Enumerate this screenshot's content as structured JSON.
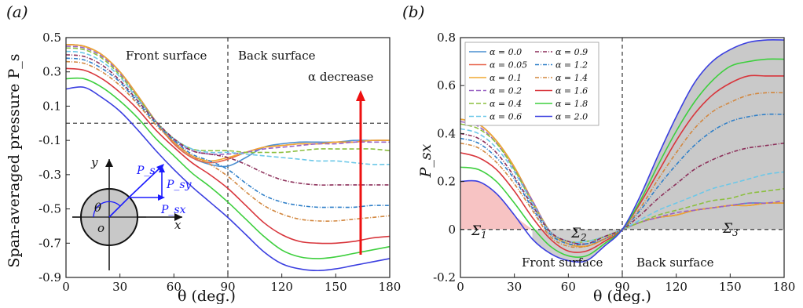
{
  "chart_data": [
    {
      "panel": "(a)",
      "type": "line",
      "xlabel": "θ (deg.)",
      "ylabel": "Span-averaged pressure P_s",
      "xlim": [
        0,
        180
      ],
      "ylim": [
        -0.9,
        0.5
      ],
      "xticks": [
        "0",
        "30",
        "60",
        "90",
        "120",
        "150",
        "180"
      ],
      "yticks": [
        "-0.9",
        "-0.7",
        "-0.5",
        "-0.3",
        "-0.1",
        "0.1",
        "0.3",
        "0.5"
      ],
      "grid": false,
      "annotations": {
        "front": "Front surface",
        "back": "Back surface",
        "trend": "α decrease"
      },
      "diagram": {
        "y": "y",
        "x": "x",
        "o": "o",
        "theta": "θ",
        "ps": "P_s",
        "psy": "P_sy",
        "psx": "P_sx"
      },
      "x": [
        0,
        10,
        20,
        30,
        40,
        50,
        60,
        70,
        80,
        90,
        100,
        110,
        120,
        130,
        140,
        150,
        160,
        170,
        180
      ],
      "series": [
        {
          "name": "α = 0.0",
          "color": "#4a8fd0",
          "dash": "",
          "values": [
            0.46,
            0.45,
            0.4,
            0.3,
            0.16,
            0.01,
            -0.12,
            -0.2,
            -0.24,
            -0.25,
            -0.2,
            -0.14,
            -0.12,
            -0.11,
            -0.11,
            -0.11,
            -0.1,
            -0.1,
            -0.1
          ]
        },
        {
          "name": "α = 0.05",
          "color": "#e8644b",
          "dash": "",
          "values": [
            0.46,
            0.45,
            0.4,
            0.3,
            0.16,
            0.01,
            -0.12,
            -0.2,
            -0.23,
            -0.21,
            -0.17,
            -0.14,
            -0.13,
            -0.12,
            -0.12,
            -0.11,
            -0.11,
            -0.1,
            -0.1
          ]
        },
        {
          "name": "α = 0.1",
          "color": "#f0a830",
          "dash": "",
          "values": [
            0.46,
            0.45,
            0.4,
            0.3,
            0.16,
            0.01,
            -0.11,
            -0.19,
            -0.22,
            -0.2,
            -0.17,
            -0.14,
            -0.13,
            -0.12,
            -0.12,
            -0.11,
            -0.11,
            -0.1,
            -0.1
          ]
        },
        {
          "name": "α = 0.2",
          "color": "#9a63c4",
          "dash": "6,3",
          "values": [
            0.45,
            0.44,
            0.39,
            0.29,
            0.15,
            0.01,
            -0.1,
            -0.16,
            -0.18,
            -0.18,
            -0.17,
            -0.15,
            -0.14,
            -0.13,
            -0.12,
            -0.12,
            -0.11,
            -0.11,
            -0.11
          ]
        },
        {
          "name": "α = 0.4",
          "color": "#8cbf3f",
          "dash": "6,3",
          "values": [
            0.44,
            0.43,
            0.38,
            0.28,
            0.15,
            0.01,
            -0.09,
            -0.15,
            -0.16,
            -0.16,
            -0.17,
            -0.17,
            -0.17,
            -0.16,
            -0.15,
            -0.15,
            -0.15,
            -0.15,
            -0.16
          ]
        },
        {
          "name": "α = 0.6",
          "color": "#6cc8e8",
          "dash": "6,3",
          "values": [
            0.42,
            0.41,
            0.36,
            0.27,
            0.14,
            0.01,
            -0.09,
            -0.15,
            -0.17,
            -0.17,
            -0.18,
            -0.19,
            -0.2,
            -0.21,
            -0.22,
            -0.22,
            -0.23,
            -0.24,
            -0.24
          ]
        },
        {
          "name": "α = 0.9",
          "color": "#8c2f5a",
          "dash": "5,2,1,2",
          "values": [
            0.4,
            0.39,
            0.34,
            0.25,
            0.13,
            0.01,
            -0.09,
            -0.16,
            -0.18,
            -0.2,
            -0.24,
            -0.29,
            -0.33,
            -0.35,
            -0.36,
            -0.36,
            -0.36,
            -0.36,
            -0.36
          ]
        },
        {
          "name": "α = 1.2",
          "color": "#2f7fc8",
          "dash": "5,2,1,2",
          "values": [
            0.38,
            0.37,
            0.32,
            0.24,
            0.12,
            0.0,
            -0.1,
            -0.18,
            -0.22,
            -0.27,
            -0.35,
            -0.42,
            -0.46,
            -0.48,
            -0.49,
            -0.49,
            -0.49,
            -0.48,
            -0.48
          ]
        },
        {
          "name": "α = 1.4",
          "color": "#d2873f",
          "dash": "5,2,1,2",
          "values": [
            0.36,
            0.35,
            0.3,
            0.22,
            0.11,
            -0.01,
            -0.11,
            -0.19,
            -0.24,
            -0.31,
            -0.4,
            -0.48,
            -0.53,
            -0.56,
            -0.57,
            -0.57,
            -0.56,
            -0.55,
            -0.54
          ]
        },
        {
          "name": "α = 1.6",
          "color": "#d8363c",
          "dash": "",
          "values": [
            0.32,
            0.31,
            0.26,
            0.18,
            0.08,
            -0.04,
            -0.14,
            -0.23,
            -0.3,
            -0.38,
            -0.48,
            -0.58,
            -0.65,
            -0.69,
            -0.7,
            -0.7,
            -0.69,
            -0.67,
            -0.66
          ]
        },
        {
          "name": "α = 1.8",
          "color": "#3ecf3e",
          "dash": "",
          "values": [
            0.26,
            0.26,
            0.21,
            0.13,
            0.03,
            -0.09,
            -0.19,
            -0.29,
            -0.37,
            -0.46,
            -0.56,
            -0.66,
            -0.74,
            -0.78,
            -0.79,
            -0.78,
            -0.76,
            -0.74,
            -0.72
          ]
        },
        {
          "name": "α = 2.0",
          "color": "#3b3fe0",
          "dash": "",
          "values": [
            0.2,
            0.21,
            0.15,
            0.07,
            -0.04,
            -0.16,
            -0.27,
            -0.37,
            -0.46,
            -0.55,
            -0.65,
            -0.75,
            -0.82,
            -0.85,
            -0.86,
            -0.85,
            -0.83,
            -0.81,
            -0.79
          ]
        }
      ]
    },
    {
      "panel": "(b)",
      "type": "line",
      "xlabel": "θ (deg.)",
      "ylabel": "P_sx",
      "xlim": [
        0,
        180
      ],
      "ylim": [
        -0.2,
        0.8
      ],
      "xticks": [
        "0",
        "30",
        "60",
        "90",
        "120",
        "150",
        "180"
      ],
      "yticks": [
        "-0.2",
        "0",
        "0.2",
        "0.4",
        "0.6",
        "0.8"
      ],
      "grid": false,
      "legend": "top-left",
      "annotations": {
        "front": "Front surface",
        "back": "Back surface",
        "sigma1": "Σ1",
        "sigma2": "Σ2",
        "sigma3": "Σ3"
      },
      "x": [
        0,
        10,
        20,
        30,
        40,
        50,
        60,
        70,
        80,
        90,
        100,
        110,
        120,
        130,
        140,
        150,
        160,
        170,
        180
      ],
      "series": [
        {
          "name": "α = 0.0",
          "color": "#4a8fd0",
          "dash": "",
          "values": [
            0.46,
            0.44,
            0.37,
            0.26,
            0.12,
            -0.01,
            -0.06,
            -0.07,
            -0.04,
            0.0,
            0.03,
            0.05,
            0.06,
            0.08,
            0.09,
            0.1,
            0.11,
            0.11,
            0.11
          ]
        },
        {
          "name": "α = 0.05",
          "color": "#e8644b",
          "dash": "",
          "values": [
            0.46,
            0.44,
            0.37,
            0.26,
            0.12,
            -0.01,
            -0.06,
            -0.07,
            -0.04,
            0.0,
            0.03,
            0.05,
            0.06,
            0.08,
            0.09,
            0.1,
            0.1,
            0.11,
            0.11
          ]
        },
        {
          "name": "α = 0.1",
          "color": "#f0a830",
          "dash": "",
          "values": [
            0.46,
            0.44,
            0.37,
            0.26,
            0.12,
            -0.01,
            -0.06,
            -0.07,
            -0.04,
            0.0,
            0.03,
            0.05,
            0.06,
            0.08,
            0.09,
            0.1,
            0.1,
            0.11,
            0.11
          ]
        },
        {
          "name": "α = 0.2",
          "color": "#9a63c4",
          "dash": "6,3",
          "values": [
            0.45,
            0.43,
            0.36,
            0.25,
            0.12,
            -0.01,
            -0.05,
            -0.06,
            -0.03,
            0.0,
            0.03,
            0.05,
            0.07,
            0.08,
            0.09,
            0.1,
            0.11,
            0.11,
            0.12
          ]
        },
        {
          "name": "α = 0.4",
          "color": "#8cbf3f",
          "dash": "6,3",
          "values": [
            0.44,
            0.42,
            0.36,
            0.25,
            0.11,
            -0.01,
            -0.05,
            -0.05,
            -0.03,
            0.0,
            0.03,
            0.06,
            0.08,
            0.1,
            0.12,
            0.13,
            0.15,
            0.16,
            0.17
          ]
        },
        {
          "name": "α = 0.6",
          "color": "#6cc8e8",
          "dash": "6,3",
          "values": [
            0.42,
            0.4,
            0.34,
            0.24,
            0.11,
            -0.01,
            -0.05,
            -0.05,
            -0.03,
            0.0,
            0.04,
            0.08,
            0.11,
            0.14,
            0.17,
            0.19,
            0.21,
            0.23,
            0.24
          ]
        },
        {
          "name": "α = 0.9",
          "color": "#8c2f5a",
          "dash": "5,2,1,2",
          "values": [
            0.4,
            0.38,
            0.32,
            0.22,
            0.1,
            -0.01,
            -0.05,
            -0.06,
            -0.03,
            0.0,
            0.06,
            0.13,
            0.19,
            0.25,
            0.29,
            0.32,
            0.34,
            0.35,
            0.36
          ]
        },
        {
          "name": "α = 1.2",
          "color": "#2f7fc8",
          "dash": "5,2,1,2",
          "values": [
            0.38,
            0.36,
            0.3,
            0.21,
            0.09,
            -0.02,
            -0.06,
            -0.06,
            -0.04,
            0.0,
            0.08,
            0.18,
            0.27,
            0.35,
            0.41,
            0.45,
            0.47,
            0.48,
            0.48
          ]
        },
        {
          "name": "α = 1.4",
          "color": "#d2873f",
          "dash": "5,2,1,2",
          "values": [
            0.36,
            0.34,
            0.28,
            0.19,
            0.08,
            -0.03,
            -0.07,
            -0.07,
            -0.04,
            0.0,
            0.09,
            0.21,
            0.32,
            0.42,
            0.49,
            0.53,
            0.56,
            0.57,
            0.57
          ]
        },
        {
          "name": "α = 1.6",
          "color": "#d8363c",
          "dash": "",
          "values": [
            0.32,
            0.3,
            0.25,
            0.16,
            0.05,
            -0.04,
            -0.09,
            -0.09,
            -0.05,
            0.0,
            0.11,
            0.24,
            0.37,
            0.48,
            0.56,
            0.61,
            0.64,
            0.64,
            0.64
          ]
        },
        {
          "name": "α = 1.8",
          "color": "#3ecf3e",
          "dash": "",
          "values": [
            0.26,
            0.25,
            0.2,
            0.11,
            0.01,
            -0.07,
            -0.11,
            -0.11,
            -0.06,
            0.0,
            0.12,
            0.27,
            0.41,
            0.53,
            0.62,
            0.68,
            0.7,
            0.71,
            0.71
          ]
        },
        {
          "name": "α = 2.0",
          "color": "#3b3fe0",
          "dash": "",
          "values": [
            0.2,
            0.2,
            0.15,
            0.06,
            -0.04,
            -0.1,
            -0.13,
            -0.13,
            -0.07,
            0.0,
            0.14,
            0.31,
            0.47,
            0.61,
            0.7,
            0.75,
            0.78,
            0.79,
            0.79
          ]
        }
      ]
    }
  ]
}
